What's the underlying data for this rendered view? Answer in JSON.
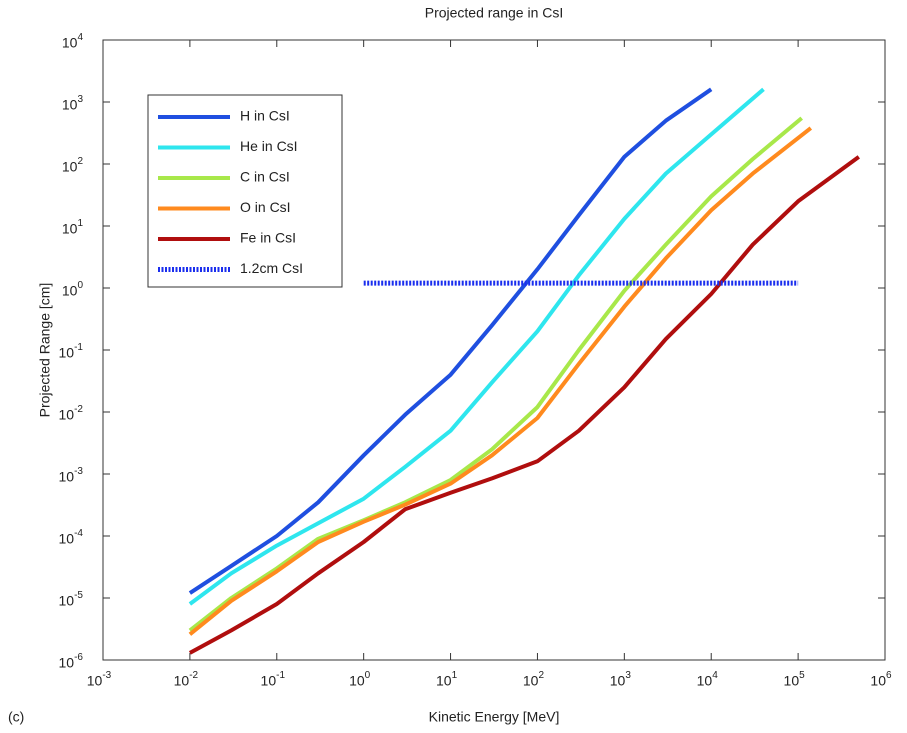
{
  "chart_data": {
    "type": "line",
    "title": "Projected range in CsI",
    "x_label": "Kinetic Energy [MeV]",
    "y_label": "Projected Range [cm]",
    "annotation": "(c)",
    "log_x": true,
    "log_y": true,
    "xlim": [
      0.001,
      1000000
    ],
    "ylim": [
      1e-06,
      10000
    ],
    "xticks": [
      {
        "value": 0.001,
        "label": "10",
        "exponent": "-3"
      },
      {
        "value": 0.01,
        "label": "10",
        "exponent": "-2"
      },
      {
        "value": 0.1,
        "label": "10",
        "exponent": "-1"
      },
      {
        "value": 1,
        "label": "10",
        "exponent": "0"
      },
      {
        "value": 10,
        "label": "10",
        "exponent": "1"
      },
      {
        "value": 100,
        "label": "10",
        "exponent": "2"
      },
      {
        "value": 1000,
        "label": "10",
        "exponent": "3"
      },
      {
        "value": 10000,
        "label": "10",
        "exponent": "4"
      },
      {
        "value": 100000,
        "label": "10",
        "exponent": "5"
      },
      {
        "value": 1000000,
        "label": "10",
        "exponent": "6"
      }
    ],
    "yticks": [
      {
        "value": 1e-06,
        "label": "10",
        "exponent": "-6"
      },
      {
        "value": 1e-05,
        "label": "10",
        "exponent": "-5"
      },
      {
        "value": 0.0001,
        "label": "10",
        "exponent": "-4"
      },
      {
        "value": 0.001,
        "label": "10",
        "exponent": "-3"
      },
      {
        "value": 0.01,
        "label": "10",
        "exponent": "-2"
      },
      {
        "value": 0.1,
        "label": "10",
        "exponent": "-1"
      },
      {
        "value": 1,
        "label": "10",
        "exponent": "0"
      },
      {
        "value": 10,
        "label": "10",
        "exponent": "1"
      },
      {
        "value": 100,
        "label": "10",
        "exponent": "2"
      },
      {
        "value": 1000,
        "label": "10",
        "exponent": "3"
      },
      {
        "value": 10000,
        "label": "10",
        "exponent": "4"
      }
    ],
    "series": [
      {
        "name": "H in CsI",
        "color": "#1f4fe0",
        "x": [
          0.01,
          0.03,
          0.1,
          0.3,
          1,
          3,
          10,
          30,
          100,
          300,
          1000,
          3000,
          10000
        ],
        "values": [
          1.2e-05,
          3.3e-05,
          0.0001,
          0.00035,
          0.002,
          0.009,
          0.04,
          0.25,
          2,
          15,
          130,
          500,
          1600
        ]
      },
      {
        "name": "He in CsI",
        "color": "#2ee6ee",
        "x": [
          0.01,
          0.03,
          0.1,
          0.3,
          1,
          3,
          10,
          30,
          100,
          300,
          1000,
          3000,
          10000,
          40000
        ],
        "values": [
          8e-06,
          2.5e-05,
          7e-05,
          0.00016,
          0.0004,
          0.0013,
          0.005,
          0.03,
          0.2,
          1.6,
          13,
          70,
          300,
          1600
        ]
      },
      {
        "name": "C in CsI",
        "color": "#a8e84a",
        "x": [
          0.01,
          0.03,
          0.1,
          0.3,
          1,
          3,
          10,
          30,
          100,
          300,
          1000,
          3000,
          10000,
          30000,
          110000
        ],
        "values": [
          3e-06,
          1e-05,
          3e-05,
          9e-05,
          0.00018,
          0.00035,
          0.0008,
          0.0025,
          0.012,
          0.1,
          0.9,
          5,
          30,
          120,
          550
        ]
      },
      {
        "name": "O in CsI",
        "color": "#ff8a1e",
        "x": [
          0.01,
          0.03,
          0.1,
          0.3,
          1,
          3,
          10,
          30,
          100,
          300,
          1000,
          3000,
          10000,
          30000,
          140000
        ],
        "values": [
          2.6e-06,
          9e-06,
          2.7e-05,
          8e-05,
          0.00017,
          0.00032,
          0.0007,
          0.002,
          0.008,
          0.06,
          0.5,
          3,
          18,
          70,
          380
        ]
      },
      {
        "name": "Fe in CsI",
        "color": "#b00e0e",
        "x": [
          0.01,
          0.03,
          0.1,
          0.3,
          1,
          3,
          10,
          30,
          100,
          300,
          1000,
          3000,
          10000,
          30000,
          100000,
          500000
        ],
        "values": [
          1.3e-06,
          3e-06,
          8e-06,
          2.5e-05,
          8e-05,
          0.00027,
          0.0005,
          0.00085,
          0.0016,
          0.005,
          0.025,
          0.15,
          0.8,
          5,
          25,
          130
        ]
      },
      {
        "name": "1.2cm CsI",
        "color": "#1a2eee",
        "dashed": true,
        "x": [
          1,
          100000
        ],
        "values": [
          1.2,
          1.2
        ]
      }
    ]
  }
}
